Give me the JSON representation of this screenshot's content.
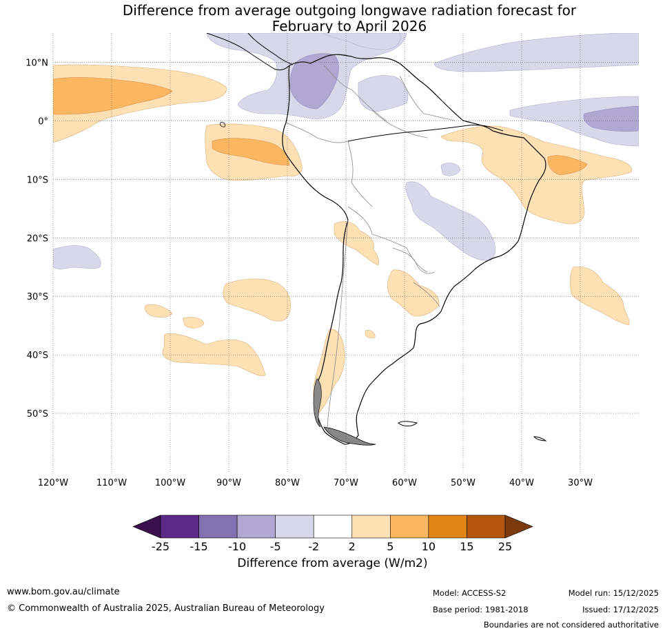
{
  "title": {
    "line1": "Difference from average outgoing longwave radiation forecast for",
    "line2": "February to April 2026"
  },
  "map": {
    "lat_labels": [
      "10°N",
      "0°",
      "10°S",
      "20°S",
      "30°S",
      "40°S",
      "50°S"
    ],
    "lon_labels": [
      "120°W",
      "110°W",
      "100°W",
      "90°W",
      "80°W",
      "70°W",
      "60°W",
      "50°W",
      "40°W",
      "30°W"
    ],
    "extent": {
      "lon": [
        -120,
        -20
      ],
      "lat": [
        -60,
        15
      ]
    }
  },
  "legend": {
    "tick_labels": [
      "-25",
      "-15",
      "-10",
      "-5",
      "-2",
      "2",
      "5",
      "10",
      "15",
      "25"
    ],
    "colors": [
      "#3b0f4e",
      "#5e2a8a",
      "#8273b0",
      "#b1a8d1",
      "#d8d8ea",
      "#ffffff",
      "#fde0b3",
      "#fbb661",
      "#e28416",
      "#b4560d",
      "#7b3a0c"
    ],
    "axis_label": "Difference from average (W/m2)"
  },
  "footer": {
    "website": "www.bom.gov.au/climate",
    "copyright": "© Commonwealth of Australia 2025, Australian Bureau of Meteorology",
    "model": "Model: ACCESS-S2",
    "base_period": "Base period: 1981-2018",
    "model_run": "Model run: 15/12/2025",
    "issued": "Issued: 17/12/2025",
    "disclaimer": "Boundaries are not considered authoritative"
  }
}
